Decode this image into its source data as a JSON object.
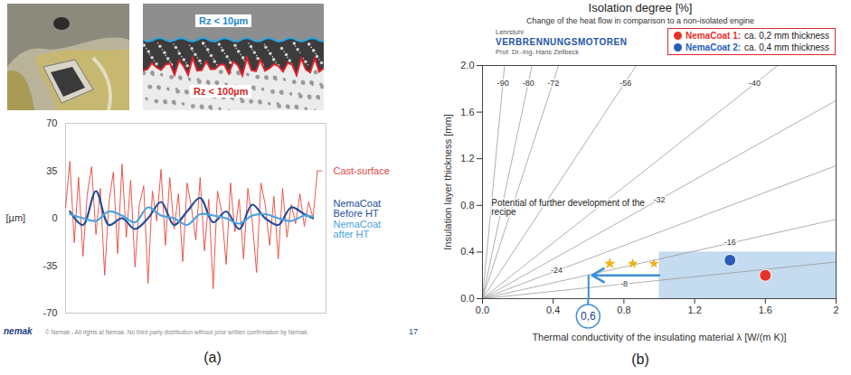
{
  "figure": {
    "panel_labels": [
      "(a)",
      "(b)"
    ],
    "micrograph_labels": [
      "Rz < 10µm",
      "Rz < 100µm"
    ],
    "footer": "© Nemak - All rights at Nemak. No third party distribution without prior written confirmation by Nemak.",
    "page_number": "17",
    "footer_logo": "nemak"
  },
  "chart_data": [
    {
      "type": "line",
      "y_label": "[µm]",
      "xlim": [
        0,
        60
      ],
      "ylim": [
        -70,
        70
      ],
      "yticks": [
        -70,
        -35,
        0,
        35,
        70
      ],
      "tick_labels": "y",
      "series": [
        {
          "name": "Cast-surface",
          "color": "#e8463c",
          "x": [
            0,
            1,
            2,
            3,
            4,
            5,
            6,
            7,
            8,
            9,
            10,
            11,
            12,
            13,
            14,
            15,
            16,
            17,
            18,
            19,
            20,
            21,
            22,
            23,
            24,
            25,
            26,
            27,
            28,
            29,
            30,
            31,
            32,
            33,
            34,
            35,
            36,
            37,
            38,
            39,
            40,
            41,
            42,
            43,
            44,
            45,
            46,
            47,
            48,
            49,
            50,
            51,
            52,
            53,
            54,
            55,
            56,
            57,
            58,
            59
          ],
          "values": [
            8,
            42,
            -18,
            30,
            -28,
            18,
            38,
            -12,
            22,
            -42,
            12,
            34,
            -26,
            40,
            -14,
            28,
            -36,
            10,
            24,
            -48,
            20,
            -2,
            36,
            -20,
            30,
            -8,
            18,
            -32,
            26,
            8,
            -16,
            30,
            -24,
            14,
            -52,
            20,
            4,
            -34,
            26,
            -10,
            14,
            -30,
            22,
            -2,
            -40,
            26,
            10,
            -20,
            16,
            -30,
            22,
            -14,
            10,
            -4,
            18,
            -6,
            12,
            0,
            35,
            35
          ]
        },
        {
          "name": "NemaCoat Before HT",
          "color": "#1f4e9c",
          "x": [
            1,
            4,
            7,
            10,
            13,
            16,
            19,
            22,
            25,
            28,
            31,
            34,
            37,
            40,
            43,
            46,
            49,
            52,
            55,
            57
          ],
          "values": [
            5,
            -5,
            20,
            -5,
            0,
            -8,
            0,
            12,
            -5,
            5,
            15,
            -3,
            5,
            -8,
            10,
            0,
            -5,
            8,
            3,
            0
          ]
        },
        {
          "name": "NemaCoat after HT",
          "color": "#4aa3df",
          "x": [
            1,
            4,
            7,
            10,
            13,
            16,
            19,
            22,
            25,
            28,
            31,
            34,
            37,
            40,
            43,
            46,
            49,
            52,
            55,
            57
          ],
          "values": [
            3,
            0,
            -2,
            5,
            2,
            -3,
            8,
            2,
            0,
            -5,
            3,
            2,
            0,
            -4,
            2,
            3,
            0,
            -2,
            2,
            1
          ]
        }
      ]
    },
    {
      "type": "line",
      "title": "Isolation degree [%]",
      "subtitle": "Change of the heat flow in comparison to a non-isolated engine",
      "x_label": "Thermal conductivity of the insulating material λ [W/(m K)]",
      "y_label": "Insulation layer thickness [mm]",
      "xlim": [
        0,
        2
      ],
      "ylim": [
        0,
        2
      ],
      "xticks": [
        {
          "value": 0,
          "label": "0.0"
        },
        0.4,
        0.8,
        1.2,
        1.6,
        2
      ],
      "yticks": [
        {
          "value": 0,
          "label": "0.0"
        },
        0.4,
        0.8,
        1.2,
        1.6,
        {
          "value": 2,
          "label": "2.0"
        }
      ],
      "legend": "top",
      "logo": [
        "Lehrstuhl",
        "VERBRENNUNGSMOTOREN",
        "Prof. Dr.-Ing. Hans Zellbeck"
      ],
      "contours": [
        {
          "level": -90,
          "x": [
            0,
            0.125
          ],
          "values": [
            0,
            2
          ],
          "label_x": 0.116,
          "label_y": 1.85
        },
        {
          "level": -80,
          "x": [
            0,
            0.28
          ],
          "values": [
            0,
            2
          ],
          "label_x": 0.26,
          "label_y": 1.85
        },
        {
          "level": -72,
          "x": [
            0,
            0.43
          ],
          "values": [
            0,
            2
          ],
          "label_x": 0.4,
          "label_y": 1.85
        },
        {
          "level": -56,
          "x": [
            0,
            0.87
          ],
          "values": [
            0,
            2
          ],
          "label_x": 0.81,
          "label_y": 1.85
        },
        {
          "level": -40,
          "x": [
            0,
            1.67
          ],
          "values": [
            0,
            2
          ],
          "label_x": 1.54,
          "label_y": 1.85
        },
        {
          "level": -32,
          "x": [
            0,
            2
          ],
          "values": [
            0,
            1.7
          ],
          "label_x": 1.0,
          "label_y": 0.85
        },
        {
          "level": -24,
          "x": [
            0,
            2
          ],
          "values": [
            0,
            1.14
          ],
          "label_x": 0.42,
          "label_y": 0.24
        },
        {
          "level": -16,
          "x": [
            0,
            2
          ],
          "values": [
            0,
            0.68
          ],
          "label_x": 1.4,
          "label_y": 0.48
        },
        {
          "level": -8,
          "x": [
            0,
            2
          ],
          "values": [
            0,
            0.314
          ],
          "label_x": 0.8,
          "label_y": 0.126
        }
      ],
      "series": [
        {
          "name": "NemaCoat 1:",
          "description": "ca. 0,2 mm thickness",
          "color": "#e8302a",
          "type": "scatter",
          "x": [
            1.6
          ],
          "values": [
            0.2
          ]
        },
        {
          "name": "NemaCoat 2:",
          "description": "ca. 0,4 mm thickness",
          "color": "#2a5cb8",
          "type": "scatter",
          "x": [
            1.4
          ],
          "values": [
            0.33
          ]
        }
      ],
      "region": {
        "x": [
          1.0,
          2.0
        ],
        "y": [
          0,
          0.4
        ]
      },
      "annotation": {
        "text": "Potential of further development of the recipe",
        "x": 0.05,
        "y": 0.72
      },
      "stars": {
        "x": [
          0.72,
          0.85,
          0.97
        ],
        "y": [
          0.3,
          0.3,
          0.3
        ]
      },
      "arrow": {
        "x": [
          1.0,
          0.62
        ],
        "y": 0.2
      },
      "highlight_tick": {
        "value": 0.6,
        "label": "0,6"
      }
    }
  ]
}
